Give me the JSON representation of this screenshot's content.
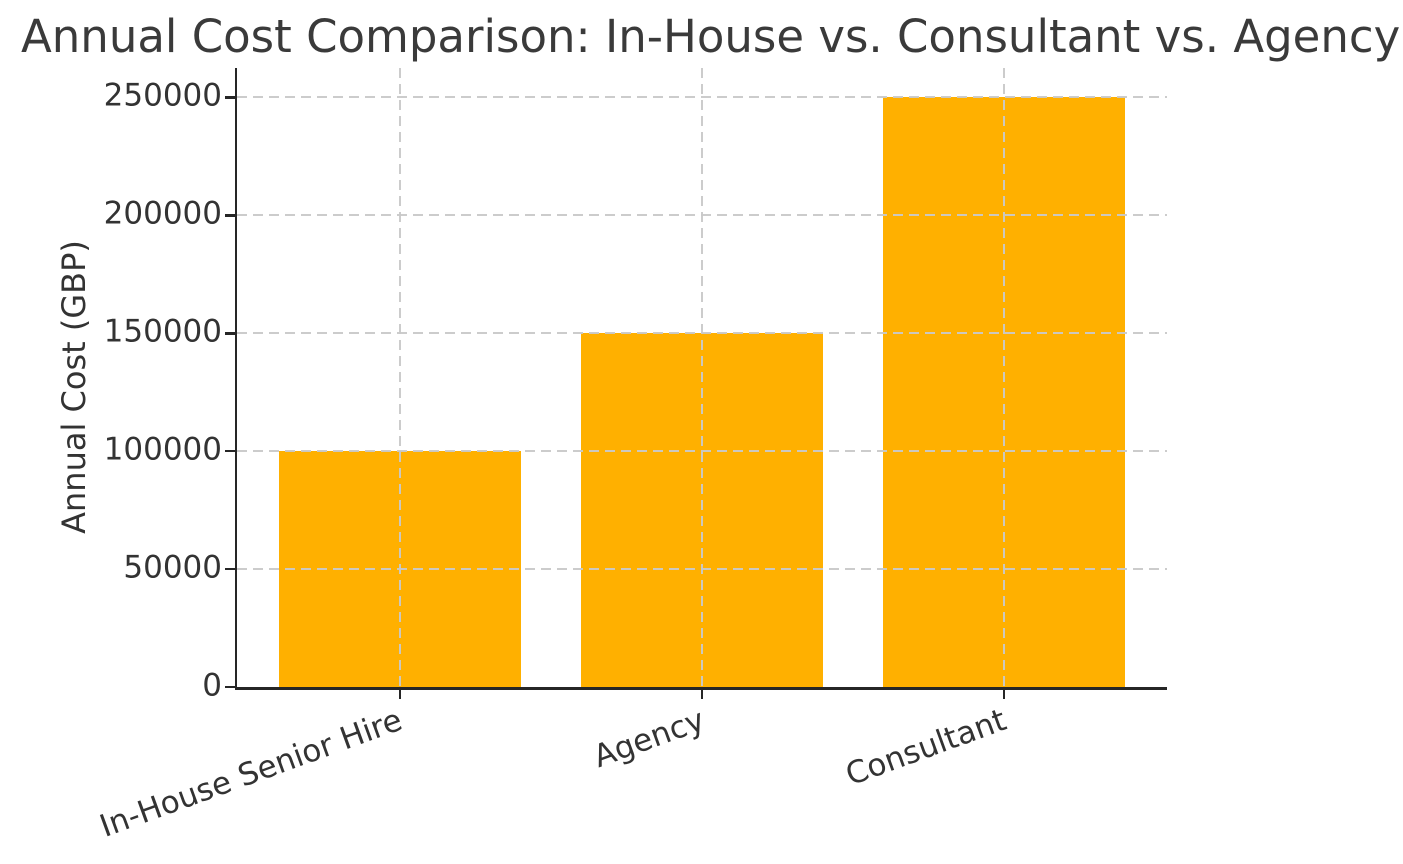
{
  "chart_data": {
    "type": "bar",
    "title": "Annual Cost Comparison: In-House vs. Consultant vs. Agency",
    "xlabel": "",
    "ylabel": "Annual Cost (GBP)",
    "categories": [
      "In-House Senior Hire",
      "Agency",
      "Consultant"
    ],
    "values": [
      100000,
      150000,
      250000
    ],
    "y_ticks": [
      0,
      50000,
      100000,
      150000,
      200000,
      250000
    ],
    "y_tick_labels": [
      "0",
      "50000",
      "100000",
      "150000",
      "200000",
      "250000"
    ],
    "ylim": [
      0,
      262500
    ],
    "bar_color": "#FFB000",
    "grid": "dashed",
    "grid_color": "#c9c9c9",
    "grid_above_bars": true,
    "x_tick_rotation_deg": 20,
    "legend": "none"
  }
}
